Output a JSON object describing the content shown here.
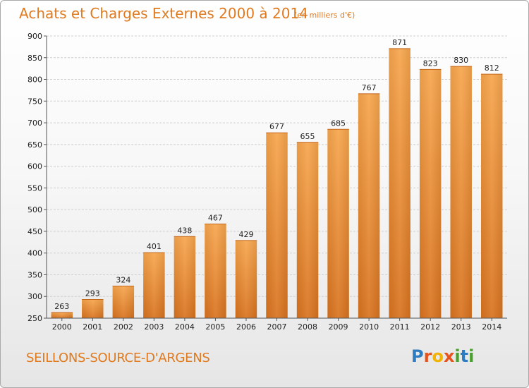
{
  "chart_data": {
    "type": "bar",
    "title": "Achats et Charges Externes 2000 à 2014",
    "subtitle": "(en milliers d'€)",
    "categories": [
      "2000",
      "2001",
      "2002",
      "2003",
      "2004",
      "2005",
      "2006",
      "2007",
      "2008",
      "2009",
      "2010",
      "2011",
      "2012",
      "2013",
      "2014"
    ],
    "values": [
      263,
      293,
      324,
      401,
      438,
      467,
      429,
      677,
      655,
      685,
      767,
      871,
      823,
      830,
      812
    ],
    "ylim": [
      250,
      900
    ],
    "yticks": [
      250,
      300,
      350,
      400,
      450,
      500,
      550,
      600,
      650,
      700,
      750,
      800,
      850,
      900
    ],
    "grid": true,
    "bar_color": "#f39a3a"
  },
  "footer": {
    "commune": "SEILLONS-SOURCE-D'ARGENS",
    "logo_letters": [
      "P",
      "r",
      "o",
      "x",
      "i",
      "t",
      "i"
    ],
    "logo_colors": [
      "#2d7cc1",
      "#e8531b",
      "#f2b400",
      "#e8531b",
      "#4aa02c",
      "#2d7cc1",
      "#4aa02c"
    ]
  }
}
